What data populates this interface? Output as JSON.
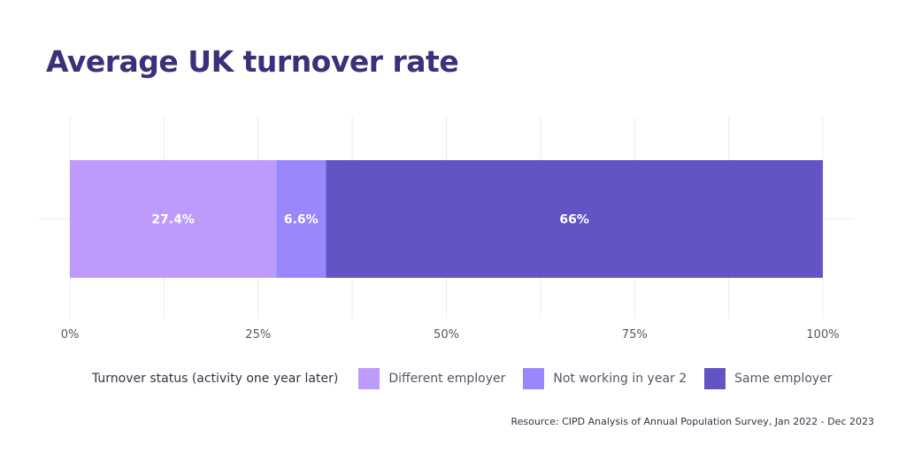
{
  "chart_data": {
    "type": "bar",
    "orientation": "horizontal-stacked",
    "title": "Average UK turnover rate",
    "categories": [
      ""
    ],
    "series": [
      {
        "name": "Different employer",
        "values": [
          27.4
        ],
        "label": "27.4%",
        "color": "#bc9bfb"
      },
      {
        "name": "Not working in year 2",
        "values": [
          6.6
        ],
        "label": "6.6%",
        "color": "#9b87fd"
      },
      {
        "name": "Same employer",
        "values": [
          66
        ],
        "label": "66%",
        "color": "#6254c5"
      }
    ],
    "xlim": [
      0,
      100
    ],
    "x_ticks": [
      0,
      25,
      50,
      75,
      100
    ],
    "x_tick_labels": [
      "0%",
      "25%",
      "50%",
      "75%",
      "100%"
    ],
    "grid": true,
    "legend_title": "Turnover status (activity one year later)",
    "legend_position": "bottom",
    "source": "Resource: CIPD Analysis of Annual Population Survey, Jan 2022 - Dec 2023"
  }
}
